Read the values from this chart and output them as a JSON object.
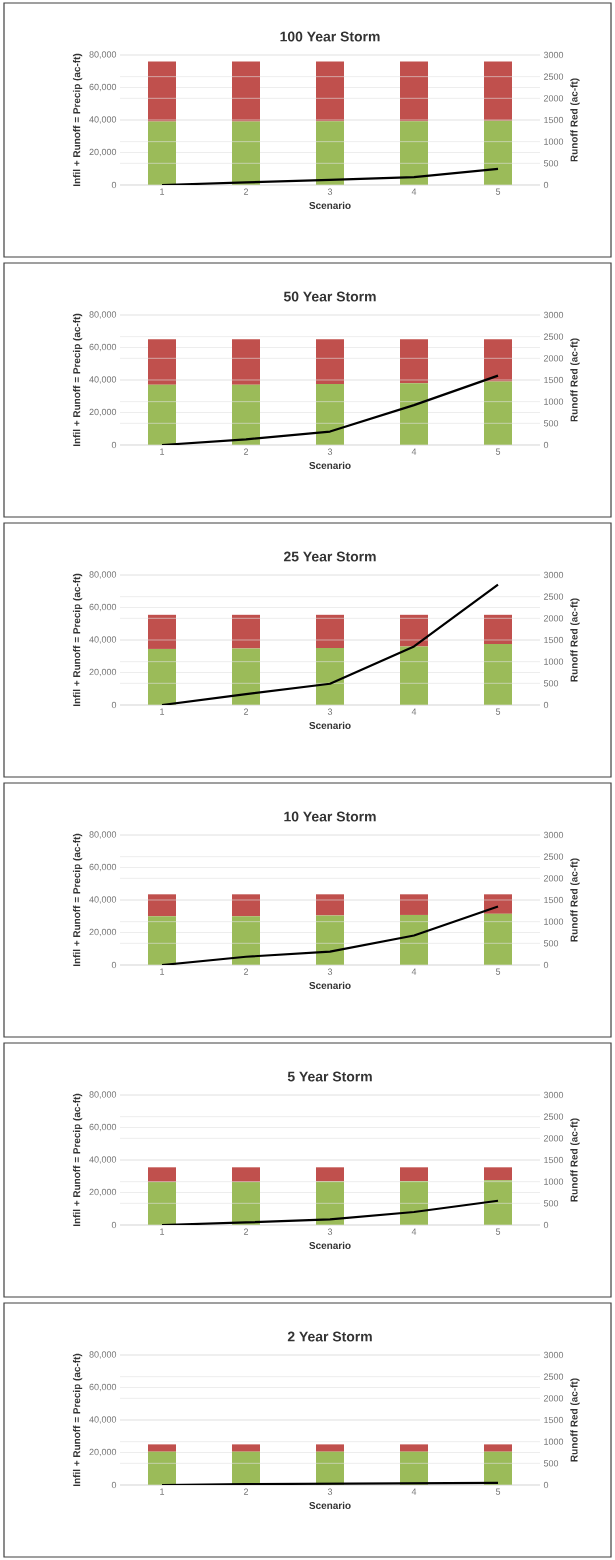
{
  "chart_data": [
    {
      "type": "bar",
      "title": "100 Year Storm",
      "xlabel": "Scenario",
      "ylabel": "Infil + Runoff = Precip (ac-ft)",
      "y2label": "Runoff Red (ac-ft)",
      "categories": [
        "1",
        "2",
        "3",
        "4",
        "5"
      ],
      "stacked": true,
      "grid": "y",
      "series": [
        {
          "color": "#9bbb59",
          "values": [
            39000,
            39000,
            39200,
            39200,
            39500
          ]
        },
        {
          "color": "#c0504d",
          "values": [
            37000,
            37000,
            36800,
            36800,
            36500
          ]
        },
        {
          "type": "line",
          "axis": "y2",
          "color": "#000000",
          "values": [
            0,
            60,
            120,
            180,
            370
          ]
        }
      ],
      "ylim": [
        0,
        80000
      ],
      "yticks": [
        0,
        {
          "value": 20000,
          "label": "20,000"
        },
        {
          "value": 40000,
          "label": "40,000"
        },
        {
          "value": 60000,
          "label": "60,000"
        },
        {
          "value": 80000,
          "label": "80,000"
        }
      ],
      "y2lim": [
        0,
        3000
      ],
      "y2ticks": [
        0,
        500,
        1000,
        1500,
        2000,
        2500,
        3000
      ]
    },
    {
      "type": "bar",
      "title": "50 Year Storm",
      "xlabel": "Scenario",
      "ylabel": "Infil + Runoff = Precip (ac-ft)",
      "y2label": "Runoff Red (ac-ft)",
      "categories": [
        "1",
        "2",
        "3",
        "4",
        "5"
      ],
      "stacked": true,
      "grid": "y",
      "series": [
        {
          "color": "#9bbb59",
          "values": [
            37000,
            37000,
            37500,
            38000,
            39000
          ]
        },
        {
          "color": "#c0504d",
          "values": [
            28000,
            28000,
            27500,
            27000,
            26000
          ]
        },
        {
          "type": "line",
          "axis": "y2",
          "color": "#000000",
          "values": [
            0,
            130,
            310,
            920,
            1600
          ]
        }
      ],
      "ylim": [
        0,
        80000
      ],
      "yticks": [
        0,
        {
          "value": 20000,
          "label": "20,000"
        },
        {
          "value": 40000,
          "label": "40,000"
        },
        {
          "value": 60000,
          "label": "60,000"
        },
        {
          "value": 80000,
          "label": "80,000"
        }
      ],
      "y2lim": [
        0,
        3000
      ],
      "y2ticks": [
        0,
        500,
        1000,
        1500,
        2000,
        2500,
        3000
      ]
    },
    {
      "type": "bar",
      "title": "25 Year Storm",
      "xlabel": "Scenario",
      "ylabel": "Infil + Runoff = Precip (ac-ft)",
      "y2label": "Runoff Red (ac-ft)",
      "categories": [
        "1",
        "2",
        "3",
        "4",
        "5"
      ],
      "stacked": true,
      "grid": "y",
      "series": [
        {
          "color": "#9bbb59",
          "values": [
            34500,
            34800,
            35000,
            36000,
            37500
          ]
        },
        {
          "color": "#c0504d",
          "values": [
            21000,
            20700,
            20500,
            19500,
            18000
          ]
        },
        {
          "type": "line",
          "axis": "y2",
          "color": "#000000",
          "values": [
            0,
            250,
            490,
            1350,
            2780
          ]
        }
      ],
      "ylim": [
        0,
        80000
      ],
      "yticks": [
        0,
        {
          "value": 20000,
          "label": "20,000"
        },
        {
          "value": 40000,
          "label": "40,000"
        },
        {
          "value": 60000,
          "label": "60,000"
        },
        {
          "value": 80000,
          "label": "80,000"
        }
      ],
      "y2lim": [
        0,
        3000
      ],
      "y2ticks": [
        0,
        500,
        1000,
        1500,
        2000,
        2500,
        3000
      ]
    },
    {
      "type": "bar",
      "title": "10 Year Storm",
      "xlabel": "Scenario",
      "ylabel": "Infil + Runoff = Precip (ac-ft)",
      "y2label": "Runoff Red (ac-ft)",
      "categories": [
        "1",
        "2",
        "3",
        "4",
        "5"
      ],
      "stacked": true,
      "grid": "y",
      "series": [
        {
          "color": "#9bbb59",
          "values": [
            30000,
            30000,
            30500,
            30800,
            31500
          ]
        },
        {
          "color": "#c0504d",
          "values": [
            13500,
            13500,
            13000,
            12700,
            12000
          ]
        },
        {
          "type": "line",
          "axis": "y2",
          "color": "#000000",
          "values": [
            0,
            190,
            310,
            680,
            1350
          ]
        }
      ],
      "ylim": [
        0,
        80000
      ],
      "yticks": [
        0,
        {
          "value": 20000,
          "label": "20,000"
        },
        {
          "value": 40000,
          "label": "40,000"
        },
        {
          "value": 60000,
          "label": "60,000"
        },
        {
          "value": 80000,
          "label": "80,000"
        }
      ],
      "y2lim": [
        0,
        3000
      ],
      "y2ticks": [
        0,
        500,
        1000,
        1500,
        2000,
        2500,
        3000
      ]
    },
    {
      "type": "bar",
      "title": "5 Year Storm",
      "xlabel": "Scenario",
      "ylabel": "Infil + Runoff = Precip (ac-ft)",
      "y2label": "Runoff Red (ac-ft)",
      "categories": [
        "1",
        "2",
        "3",
        "4",
        "5"
      ],
      "stacked": true,
      "grid": "y",
      "series": [
        {
          "color": "#9bbb59",
          "values": [
            26500,
            26500,
            26700,
            27000,
            27500
          ]
        },
        {
          "color": "#c0504d",
          "values": [
            9000,
            9000,
            8800,
            8500,
            8000
          ]
        },
        {
          "type": "line",
          "axis": "y2",
          "color": "#000000",
          "values": [
            0,
            60,
            130,
            300,
            560
          ]
        }
      ],
      "ylim": [
        0,
        80000
      ],
      "yticks": [
        0,
        {
          "value": 20000,
          "label": "20,000"
        },
        {
          "value": 40000,
          "label": "40,000"
        },
        {
          "value": 60000,
          "label": "60,000"
        },
        {
          "value": 80000,
          "label": "80,000"
        }
      ],
      "y2lim": [
        0,
        3000
      ],
      "y2ticks": [
        0,
        500,
        1000,
        1500,
        2000,
        2500,
        3000
      ]
    },
    {
      "type": "bar",
      "title": "2 Year Storm",
      "xlabel": "Scenario",
      "ylabel": "Infil + Runoff = Precip (ac-ft)",
      "y2label": "Runoff Red (ac-ft)",
      "categories": [
        "1",
        "2",
        "3",
        "4",
        "5"
      ],
      "stacked": true,
      "grid": "y",
      "series": [
        {
          "color": "#9bbb59",
          "values": [
            20500,
            20500,
            20500,
            20500,
            20500
          ]
        },
        {
          "color": "#c0504d",
          "values": [
            4500,
            4500,
            4500,
            4500,
            4500
          ]
        },
        {
          "type": "line",
          "axis": "y2",
          "color": "#000000",
          "values": [
            0,
            20,
            30,
            40,
            50
          ]
        }
      ],
      "ylim": [
        0,
        80000
      ],
      "yticks": [
        0,
        {
          "value": 20000,
          "label": "20,000"
        },
        {
          "value": 40000,
          "label": "40,000"
        },
        {
          "value": 60000,
          "label": "60,000"
        },
        {
          "value": 80000,
          "label": "80,000"
        }
      ],
      "y2lim": [
        0,
        3000
      ],
      "y2ticks": [
        0,
        500,
        1000,
        1500,
        2000,
        2500,
        3000
      ]
    }
  ]
}
